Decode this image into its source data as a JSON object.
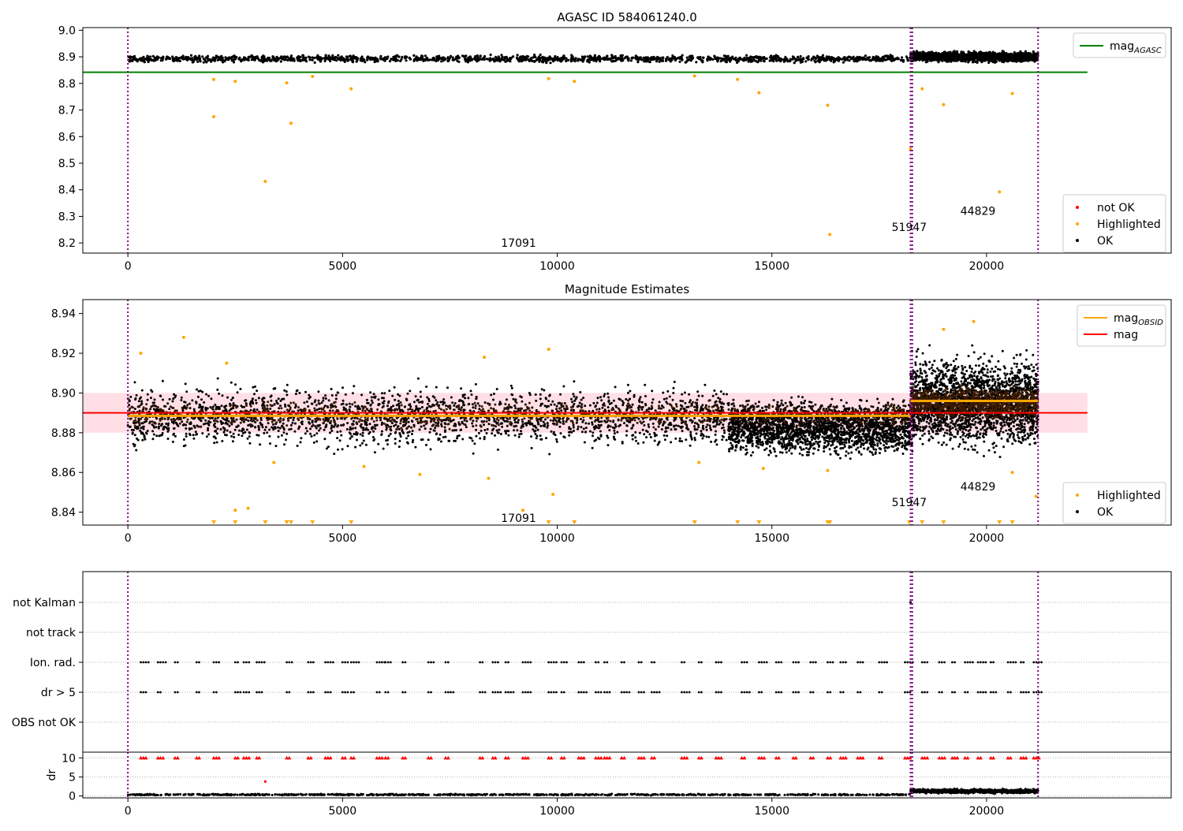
{
  "colors": {
    "ok": "#000000",
    "highlighted": "#ffa500",
    "not_ok": "#ff0000",
    "agasc_line": "#008000",
    "mag_line": "#ff0000",
    "mag_obsid": "#ffa500",
    "obsid_marker": "#800080",
    "band": "#ffc0cb"
  },
  "chart_data": [
    {
      "type": "scatter",
      "title": "AGASC ID 584061240.0",
      "xlim": [
        -1050,
        24300
      ],
      "ylim": [
        8.162,
        9.01
      ],
      "x_ticks": [
        0,
        5000,
        10000,
        15000,
        20000
      ],
      "y_ticks": [
        "8.2",
        "8.3",
        "8.4",
        "8.5",
        "8.6",
        "8.7",
        "8.8",
        "8.9",
        "9.0"
      ],
      "obsid_markers": [
        0,
        18230,
        18270,
        21200
      ],
      "obsid_labels": [
        {
          "text": "17091",
          "x": 9100,
          "y": 8.2
        },
        {
          "text": "51947",
          "x": 18200,
          "y": 8.26
        },
        {
          "text": "44829",
          "x": 19800,
          "y": 8.32
        }
      ],
      "lines": [
        {
          "name": "mag_{AGASC}",
          "value": 8.842,
          "x": [
            -1050,
            22350
          ]
        }
      ],
      "ok_band": [
        {
          "x": [
            0,
            18230
          ],
          "y": [
            8.875,
            8.91
          ]
        },
        {
          "x": [
            18230,
            21200
          ],
          "y": [
            8.875,
            8.925
          ]
        }
      ],
      "highlighted_points": [
        {
          "x": 2000,
          "y": 8.675
        },
        {
          "x": 2000,
          "y": 8.815
        },
        {
          "x": 2500,
          "y": 8.808
        },
        {
          "x": 3200,
          "y": 8.432
        },
        {
          "x": 3700,
          "y": 8.802
        },
        {
          "x": 3800,
          "y": 8.65
        },
        {
          "x": 4300,
          "y": 8.826
        },
        {
          "x": 5200,
          "y": 8.78
        },
        {
          "x": 9800,
          "y": 8.818
        },
        {
          "x": 10400,
          "y": 8.808
        },
        {
          "x": 13200,
          "y": 8.828
        },
        {
          "x": 14200,
          "y": 8.815
        },
        {
          "x": 14700,
          "y": 8.765
        },
        {
          "x": 16300,
          "y": 8.718
        },
        {
          "x": 16350,
          "y": 8.232
        },
        {
          "x": 18230,
          "y": 8.553
        },
        {
          "x": 18500,
          "y": 8.78
        },
        {
          "x": 19000,
          "y": 8.72
        },
        {
          "x": 20300,
          "y": 8.392
        },
        {
          "x": 20600,
          "y": 8.762
        }
      ],
      "legend_top": [
        {
          "label": "mag",
          "sub": "AGASC",
          "color": "#008000"
        }
      ],
      "legend_bottom": [
        {
          "label": "not OK",
          "color": "#ff0000"
        },
        {
          "label": "Highlighted",
          "color": "#ffa500"
        },
        {
          "label": "OK",
          "color": "#000000"
        }
      ]
    },
    {
      "type": "scatter",
      "title": "Magnitude Estimates",
      "xlim": [
        -1050,
        24300
      ],
      "ylim": [
        8.8335,
        8.947
      ],
      "x_ticks": [
        0,
        5000,
        10000,
        15000,
        20000
      ],
      "y_ticks": [
        "8.84",
        "8.86",
        "8.88",
        "8.90",
        "8.92",
        "8.94"
      ],
      "obsid_markers": [
        0,
        18230,
        18270,
        21200
      ],
      "obsid_labels": [
        {
          "text": "17091",
          "x": 9100,
          "y": 8.837
        },
        {
          "text": "51947",
          "x": 18200,
          "y": 8.845
        },
        {
          "text": "44829",
          "x": 19800,
          "y": 8.853
        }
      ],
      "mag": 8.89,
      "mag_band": [
        8.88,
        8.9
      ],
      "mag_obsid_segments": [
        {
          "x": [
            0,
            18230
          ],
          "y": 8.8885
        },
        {
          "x": [
            18230,
            21200
          ],
          "y": 8.896
        }
      ],
      "ok_band": [
        {
          "x": [
            0,
            14000
          ],
          "y": [
            8.868,
            8.908
          ]
        },
        {
          "x": [
            14000,
            18230
          ],
          "y": [
            8.865,
            8.9
          ]
        },
        {
          "x": [
            18230,
            21200
          ],
          "y": [
            8.866,
            8.925
          ]
        }
      ],
      "highlighted_points": [
        {
          "x": 300,
          "y": 8.92
        },
        {
          "x": 1300,
          "y": 8.928
        },
        {
          "x": 2300,
          "y": 8.915
        },
        {
          "x": 3400,
          "y": 8.865
        },
        {
          "x": 5500,
          "y": 8.863
        },
        {
          "x": 6800,
          "y": 8.859
        },
        {
          "x": 8300,
          "y": 8.918
        },
        {
          "x": 8400,
          "y": 8.857
        },
        {
          "x": 9200,
          "y": 8.841
        },
        {
          "x": 9800,
          "y": 8.922
        },
        {
          "x": 9900,
          "y": 8.849
        },
        {
          "x": 2500,
          "y": 8.841
        },
        {
          "x": 2800,
          "y": 8.842
        },
        {
          "x": 13300,
          "y": 8.865
        },
        {
          "x": 14800,
          "y": 8.862
        },
        {
          "x": 16300,
          "y": 8.861
        },
        {
          "x": 19000,
          "y": 8.932
        },
        {
          "x": 19700,
          "y": 8.936
        },
        {
          "x": 20600,
          "y": 8.86
        },
        {
          "x": 21150,
          "y": 8.848
        }
      ],
      "clipped_points_x": [
        2000,
        2500,
        3200,
        3700,
        3800,
        4300,
        5200,
        9800,
        10400,
        13200,
        14200,
        14700,
        16300,
        16350,
        18200,
        18500,
        19000,
        20300,
        20600
      ],
      "legend_top": [
        {
          "label": "mag",
          "sub": "OBSID",
          "color": "#ffa500"
        },
        {
          "label": "mag",
          "sub": "",
          "color": "#ff0000"
        }
      ],
      "legend_bottom": [
        {
          "label": "Highlighted",
          "color": "#ffa500"
        },
        {
          "label": "OK",
          "color": "#000000"
        }
      ]
    },
    {
      "type": "scatter",
      "xlim": [
        -1050,
        24300
      ],
      "categories": [
        "not Kalman",
        "not track",
        "Ion. rad.",
        "dr > 5",
        "OBS not OK"
      ],
      "flag_x": [
        300,
        700,
        1100,
        1600,
        2000,
        2500,
        2700,
        3000,
        3700,
        4200,
        4600,
        5000,
        5200,
        5800,
        6000,
        6400,
        7000,
        7400,
        8200,
        8500,
        8800,
        9200,
        9800,
        10100,
        10500,
        10900,
        11100,
        11500,
        11900,
        12200,
        12900,
        13300,
        13700,
        14300,
        14700,
        15100,
        15500,
        15900,
        16300,
        16600,
        17000,
        17500,
        18100,
        18500,
        18900,
        19200,
        19500,
        19800,
        20100,
        20500,
        20800,
        21100
      ],
      "not_kalman_x": [
        18230
      ],
      "dr": {
        "ylabel": "dr",
        "y_ticks": [
          "0",
          "5",
          "10"
        ],
        "ylim": [
          -0.5,
          11.5
        ],
        "obs_dr": [
          {
            "x": [
              0,
              18230
            ],
            "y": [
              0.1,
              0.6
            ]
          },
          {
            "x": [
              18230,
              21200
            ],
            "y": [
              0.5,
              2.0
            ]
          }
        ],
        "outlier_dr": [
          {
            "x": 3200,
            "y": 3.8
          }
        ],
        "capped_y": 10
      }
    }
  ]
}
